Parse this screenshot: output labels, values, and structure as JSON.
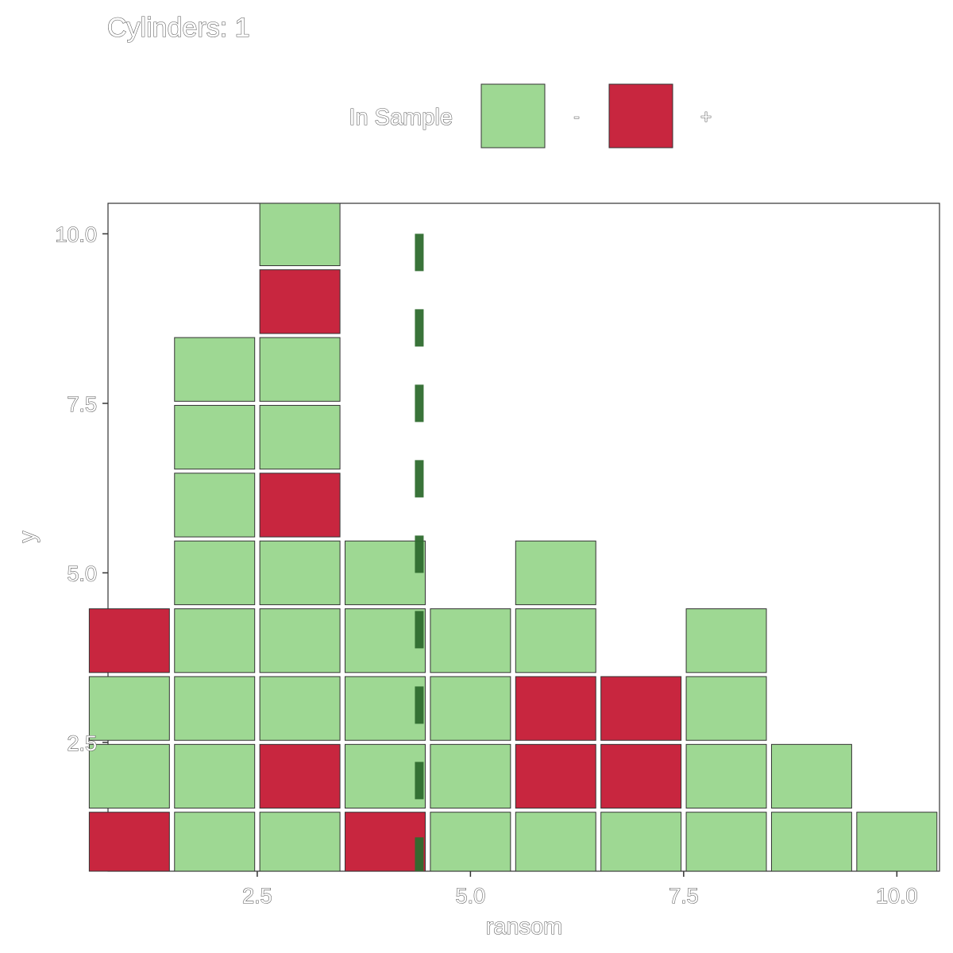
{
  "chart_data": {
    "type": "dotplot",
    "title": "Cylinders: 1",
    "xlabel": "ransom",
    "ylabel": "y",
    "xlim": [
      0.75,
      10.5
    ],
    "ylim": [
      0.6,
      10.45
    ],
    "x_ticks": [
      2.5,
      5.0,
      7.5,
      10.0
    ],
    "y_ticks": [
      2.5,
      5.0,
      7.5,
      10.0
    ],
    "x_tick_labels": [
      "2.5",
      "5.0",
      "7.5",
      "10.0"
    ],
    "y_tick_labels": [
      "2.5",
      "5.0",
      "7.5",
      "10.0"
    ],
    "legend": {
      "title": "In Sample",
      "position": "top",
      "entries": [
        {
          "label": "-",
          "color": "#9ed893"
        },
        {
          "label": "+",
          "color": "#c8263f"
        }
      ]
    },
    "reference_line": {
      "x": 4.4,
      "style": "dashed",
      "color": "#2e6b2e"
    },
    "columns": [
      {
        "x": 1,
        "stack": [
          "+",
          "-",
          "-",
          "+"
        ]
      },
      {
        "x": 2,
        "stack": [
          "-",
          "-",
          "-",
          "-",
          "-",
          "-",
          "-",
          "-"
        ]
      },
      {
        "x": 3,
        "stack": [
          "-",
          "+",
          "-",
          "-",
          "-",
          "+",
          "-",
          "-",
          "+",
          "-"
        ]
      },
      {
        "x": 4,
        "stack": [
          "+",
          "-",
          "-",
          "-",
          "-"
        ]
      },
      {
        "x": 5,
        "stack": [
          "-",
          "-",
          "-",
          "-"
        ]
      },
      {
        "x": 6,
        "stack": [
          "-",
          "+",
          "+",
          "-",
          "-"
        ]
      },
      {
        "x": 7,
        "stack": [
          "-",
          "+",
          "+"
        ]
      },
      {
        "x": 8,
        "stack": [
          "-",
          "-",
          "-",
          "-"
        ]
      },
      {
        "x": 9,
        "stack": [
          "-",
          "-"
        ]
      },
      {
        "x": 10,
        "stack": [
          "-"
        ]
      }
    ],
    "grid": false
  }
}
